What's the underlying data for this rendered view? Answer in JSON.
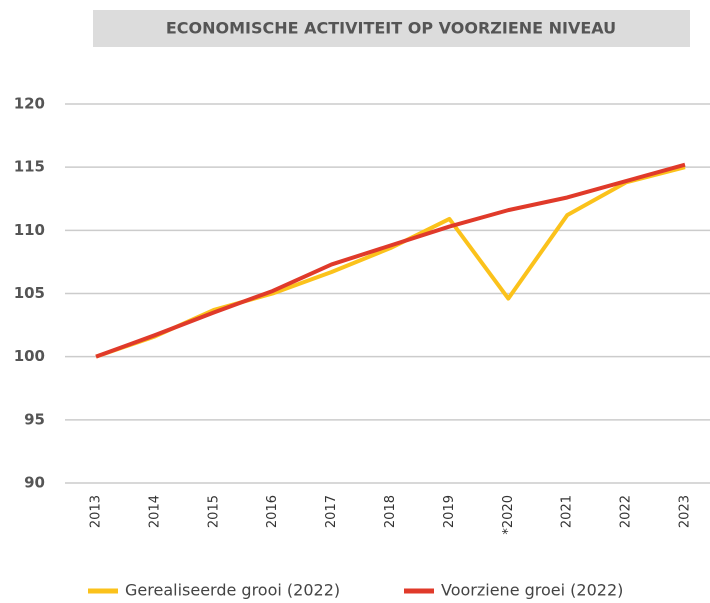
{
  "chart_data": {
    "type": "line",
    "title": "ECONOMISCHE ACTIVITEIT OP VOORZIENE NIVEAU",
    "categories": [
      "2013",
      "2014",
      "2015",
      "2016",
      "2017",
      "2018",
      "2019",
      "*2020",
      "2021",
      "2022",
      "2023"
    ],
    "series": [
      {
        "name": "Gerealiseerde grooi (2022)",
        "color": "#fbc21b",
        "values": [
          100,
          101.6,
          103.7,
          105,
          106.7,
          108.6,
          110.9,
          104.6,
          111.2,
          113.8,
          115
        ]
      },
      {
        "name": "Voorziene groei (2022)",
        "color": "#e03a2a",
        "values": [
          100,
          101.7,
          103.5,
          105.2,
          107.3,
          108.8,
          110.3,
          111.6,
          112.6,
          113.9,
          115.2
        ]
      }
    ],
    "ylim": [
      90,
      120
    ],
    "yticks": [
      90,
      95,
      100,
      105,
      110,
      115,
      120
    ],
    "grid": true,
    "legend": "bottom"
  }
}
